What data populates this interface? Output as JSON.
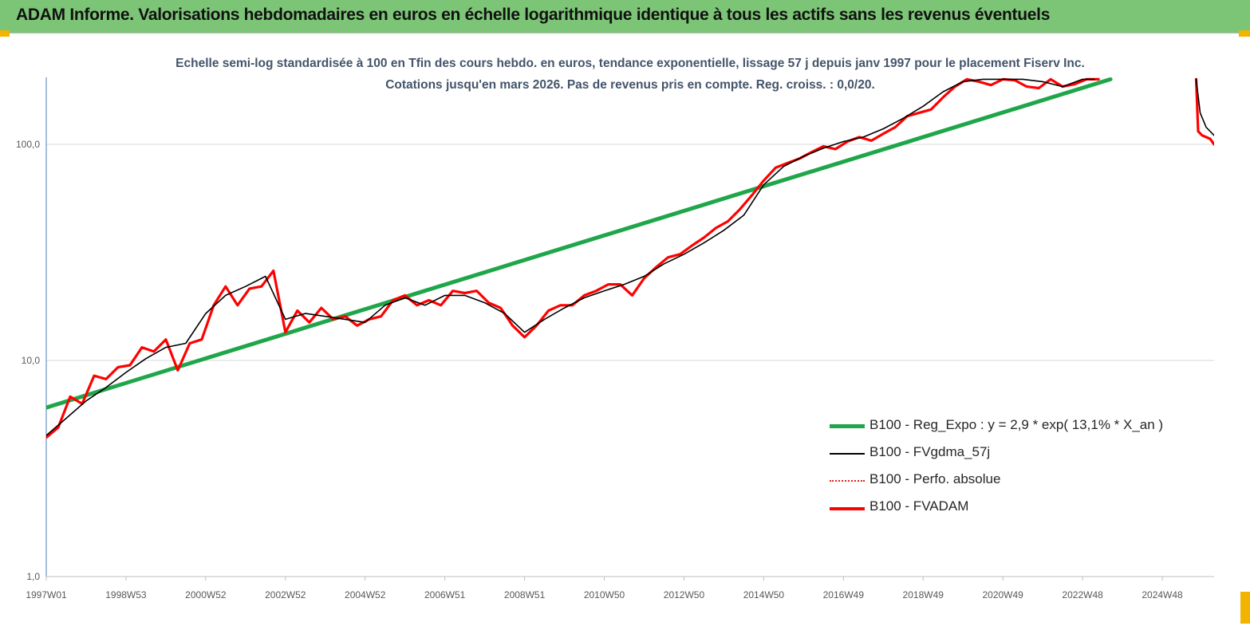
{
  "banner": {
    "title": "ADAM Informe. Valorisations hebdomadaires en euros en échelle logarithmique identique à tous les actifs sans les revenus éventuels",
    "background": "#7cc576",
    "corner_color": "#f2b400"
  },
  "chart_data": {
    "type": "line",
    "title": "Echelle semi-log standardisée à 100 en Tfin des cours hebdo. en euros, tendance exponentielle, lissage 57 j depuis janv 1997 pour le placement Fiserv  Inc. Cotations jusqu'en mars 2026.  Pas de revenus pris en compte. Reg. croiss. : 0,0/20.",
    "xlabel": "",
    "ylabel": "",
    "y_scale": "log",
    "ylim": [
      1,
      200
    ],
    "xlim": [
      1997.0,
      2026.3
    ],
    "grid": "horizontal",
    "legend_position": "bottom-right",
    "y_ticks": [
      "1,0",
      "10,0",
      "100,0"
    ],
    "y_tick_values": [
      1,
      10,
      100
    ],
    "x_ticks": [
      "1997W01",
      "1998W53",
      "2000W52",
      "2002W52",
      "2004W52",
      "2006W51",
      "2008W51",
      "2010W50",
      "2012W50",
      "2014W50",
      "2016W49",
      "2018W49",
      "2020W49",
      "2022W48",
      "2024W48"
    ],
    "x_tick_values": [
      1997.0,
      1999.0,
      2001.0,
      2003.0,
      2005.0,
      2007.0,
      2009.0,
      2011.0,
      2013.0,
      2015.0,
      2017.0,
      2019.0,
      2021.0,
      2023.0,
      2025.0
    ],
    "series": [
      {
        "name": "B100 - Reg_Expo : y = 2,9 * exp( 13,1% *  X_an )",
        "color": "#1fa64a",
        "style": "thick",
        "x": [
          1997.0,
          2023.7
        ],
        "y": [
          6.05,
          200
        ]
      },
      {
        "name": "B100 - FVgdma_57j",
        "color": "#000000",
        "style": "thin",
        "x": [
          1997.0,
          1997.5,
          1998.0,
          1998.5,
          1999.0,
          1999.5,
          2000.0,
          2000.5,
          2001.0,
          2001.5,
          2002.0,
          2002.5,
          2003.0,
          2003.5,
          2004.0,
          2004.5,
          2005.0,
          2005.5,
          2006.0,
          2006.5,
          2007.0,
          2007.5,
          2008.0,
          2008.5,
          2009.0,
          2009.5,
          2010.0,
          2010.5,
          2011.0,
          2011.5,
          2012.0,
          2012.5,
          2013.0,
          2013.5,
          2014.0,
          2014.5,
          2015.0,
          2015.5,
          2016.0,
          2016.5,
          2017.0,
          2017.5,
          2018.0,
          2018.5,
          2019.0,
          2019.5,
          2020.0,
          2020.5,
          2021.0,
          2021.5,
          2022.0,
          2022.5,
          2023.0,
          2023.3
        ],
        "y": [
          4.5,
          5.4,
          6.5,
          7.5,
          8.8,
          10.2,
          11.5,
          12.0,
          16.5,
          20.0,
          22.0,
          24.5,
          15.5,
          16.5,
          16.0,
          15.5,
          15.0,
          18.0,
          19.5,
          18.0,
          20.0,
          20.0,
          18.5,
          16.5,
          13.5,
          15.5,
          17.5,
          19.5,
          21.0,
          22.5,
          24.5,
          28.0,
          31.0,
          35.0,
          40.0,
          47.0,
          65.0,
          79.0,
          88.0,
          96.0,
          103.0,
          108.0,
          118.0,
          132.0,
          150.0,
          175.0,
          195.0,
          200.0,
          200.0,
          200.0,
          195.0,
          185.0,
          200.0,
          200.0
        ]
      },
      {
        "name": "B100 - Perfo. absolue",
        "color": "#e0201b",
        "style": "dotted",
        "x": [],
        "y": []
      },
      {
        "name": "B100 - FVADAM",
        "color": "#ff0000",
        "style": "thick",
        "x": [
          1997.0,
          1997.3,
          1997.6,
          1997.9,
          1998.2,
          1998.5,
          1998.8,
          1999.1,
          1999.4,
          1999.7,
          2000.0,
          2000.3,
          2000.6,
          2000.9,
          2001.2,
          2001.5,
          2001.8,
          2002.1,
          2002.4,
          2002.7,
          2003.0,
          2003.3,
          2003.6,
          2003.9,
          2004.2,
          2004.5,
          2004.8,
          2005.1,
          2005.4,
          2005.7,
          2006.0,
          2006.3,
          2006.6,
          2006.9,
          2007.2,
          2007.5,
          2007.8,
          2008.1,
          2008.4,
          2008.7,
          2009.0,
          2009.3,
          2009.6,
          2009.9,
          2010.2,
          2010.5,
          2010.8,
          2011.1,
          2011.4,
          2011.7,
          2012.0,
          2012.3,
          2012.6,
          2012.9,
          2013.2,
          2013.5,
          2013.8,
          2014.1,
          2014.4,
          2014.7,
          2015.0,
          2015.3,
          2015.6,
          2015.9,
          2016.2,
          2016.5,
          2016.8,
          2017.1,
          2017.4,
          2017.7,
          2018.0,
          2018.3,
          2018.6,
          2018.9,
          2019.2,
          2019.5,
          2019.8,
          2020.1,
          2020.4,
          2020.7,
          2021.0,
          2021.3,
          2021.6,
          2021.9,
          2022.2,
          2022.5,
          2022.8,
          2023.1,
          2023.4
        ],
        "y": [
          4.4,
          4.9,
          6.8,
          6.3,
          8.5,
          8.2,
          9.3,
          9.5,
          11.5,
          11.0,
          12.5,
          9.0,
          12.0,
          12.5,
          18.0,
          22.0,
          18.0,
          21.5,
          22.0,
          26.0,
          13.5,
          17.0,
          15.0,
          17.5,
          15.5,
          16.0,
          14.5,
          15.5,
          16.0,
          19.0,
          20.0,
          18.0,
          19.0,
          18.0,
          21.0,
          20.5,
          21.0,
          18.5,
          17.5,
          14.5,
          12.8,
          14.5,
          17.0,
          18.0,
          18.0,
          20.0,
          21.0,
          22.5,
          22.5,
          20.0,
          24.0,
          27.0,
          30.0,
          31.0,
          34.0,
          37.0,
          41.0,
          44.0,
          50.0,
          58.0,
          68.0,
          78.0,
          82.0,
          86.0,
          92.0,
          98.0,
          95.0,
          103.0,
          108.0,
          104.0,
          112.0,
          120.0,
          135.0,
          140.0,
          145.0,
          165.0,
          185.0,
          200.0,
          195.0,
          188.0,
          200.0,
          198.0,
          185.0,
          182.0,
          200.0,
          185.0,
          190.0,
          200.0,
          200.0
        ]
      }
    ],
    "segments_after_gap": {
      "FVgdma_57j": {
        "x": [
          2025.85,
          2025.95,
          2026.1,
          2026.3
        ],
        "y": [
          200.0,
          140.0,
          120.0,
          110.0
        ]
      },
      "FVADAM": {
        "x": [
          2025.85,
          2025.9,
          2026.0,
          2026.1,
          2026.2,
          2026.3
        ],
        "y": [
          200.0,
          115.0,
          110.0,
          108.0,
          106.0,
          100.0
        ]
      }
    }
  }
}
